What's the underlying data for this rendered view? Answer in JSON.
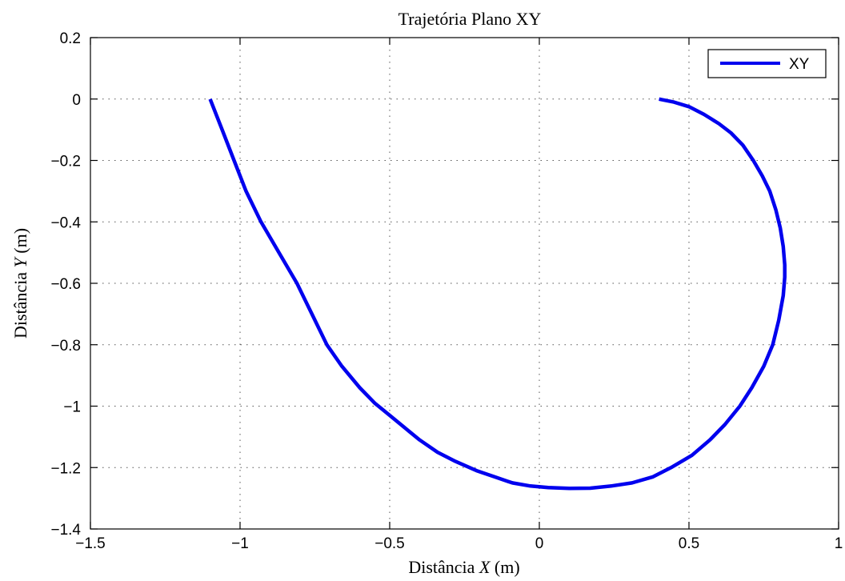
{
  "chart_data": {
    "type": "line",
    "title": "Trajetória Plano XY",
    "xlabel": {
      "prefix": "Distância ",
      "variable": "X",
      "suffix": " (m)"
    },
    "ylabel": {
      "prefix": "Distância ",
      "variable": "Y",
      "suffix": " (m)"
    },
    "xlim": [
      -1.5,
      1
    ],
    "ylim": [
      -1.4,
      0.2
    ],
    "x_ticks": [
      -1.5,
      -1,
      -0.5,
      0,
      0.5,
      1
    ],
    "x_tick_labels": [
      "−1.5",
      "−1",
      "−0.5",
      "0",
      "0.5",
      "1"
    ],
    "y_ticks": [
      0.2,
      0,
      -0.2,
      -0.4,
      -0.6,
      -0.8,
      -1,
      -1.2,
      -1.4
    ],
    "y_tick_labels": [
      "0.2",
      "0",
      "−0.2",
      "−0.4",
      "−0.6",
      "−0.8",
      "−1",
      "−1.2",
      "−1.4"
    ],
    "grid": true,
    "legend_position": "top-right",
    "series": [
      {
        "name": "XY",
        "color": "#0000ee",
        "x": [
          -1.1,
          -1.06,
          -1.02,
          -0.98,
          -0.93,
          -0.87,
          -0.81,
          -0.76,
          -0.71,
          -0.66,
          -0.6,
          -0.55,
          -0.5,
          -0.45,
          -0.4,
          -0.34,
          -0.28,
          -0.21,
          -0.15,
          -0.09,
          -0.03,
          0.03,
          0.1,
          0.17,
          0.24,
          0.31,
          0.38,
          0.44,
          0.51,
          0.57,
          0.62,
          0.67,
          0.71,
          0.75,
          0.78,
          0.8,
          0.815,
          0.82,
          0.82,
          0.815,
          0.805,
          0.79,
          0.77,
          0.745,
          0.715,
          0.68,
          0.64,
          0.6,
          0.55,
          0.5,
          0.45,
          0.4
        ],
        "y": [
          0,
          -0.1,
          -0.2,
          -0.3,
          -0.4,
          -0.5,
          -0.6,
          -0.7,
          -0.8,
          -0.87,
          -0.94,
          -0.99,
          -1.03,
          -1.07,
          -1.11,
          -1.15,
          -1.18,
          -1.21,
          -1.23,
          -1.25,
          -1.26,
          -1.265,
          -1.268,
          -1.267,
          -1.26,
          -1.25,
          -1.23,
          -1.2,
          -1.16,
          -1.11,
          -1.06,
          -1.0,
          -0.94,
          -0.87,
          -0.8,
          -0.72,
          -0.64,
          -0.58,
          -0.54,
          -0.48,
          -0.42,
          -0.36,
          -0.3,
          -0.25,
          -0.2,
          -0.15,
          -0.11,
          -0.08,
          -0.05,
          -0.025,
          -0.01,
          0
        ]
      }
    ]
  }
}
